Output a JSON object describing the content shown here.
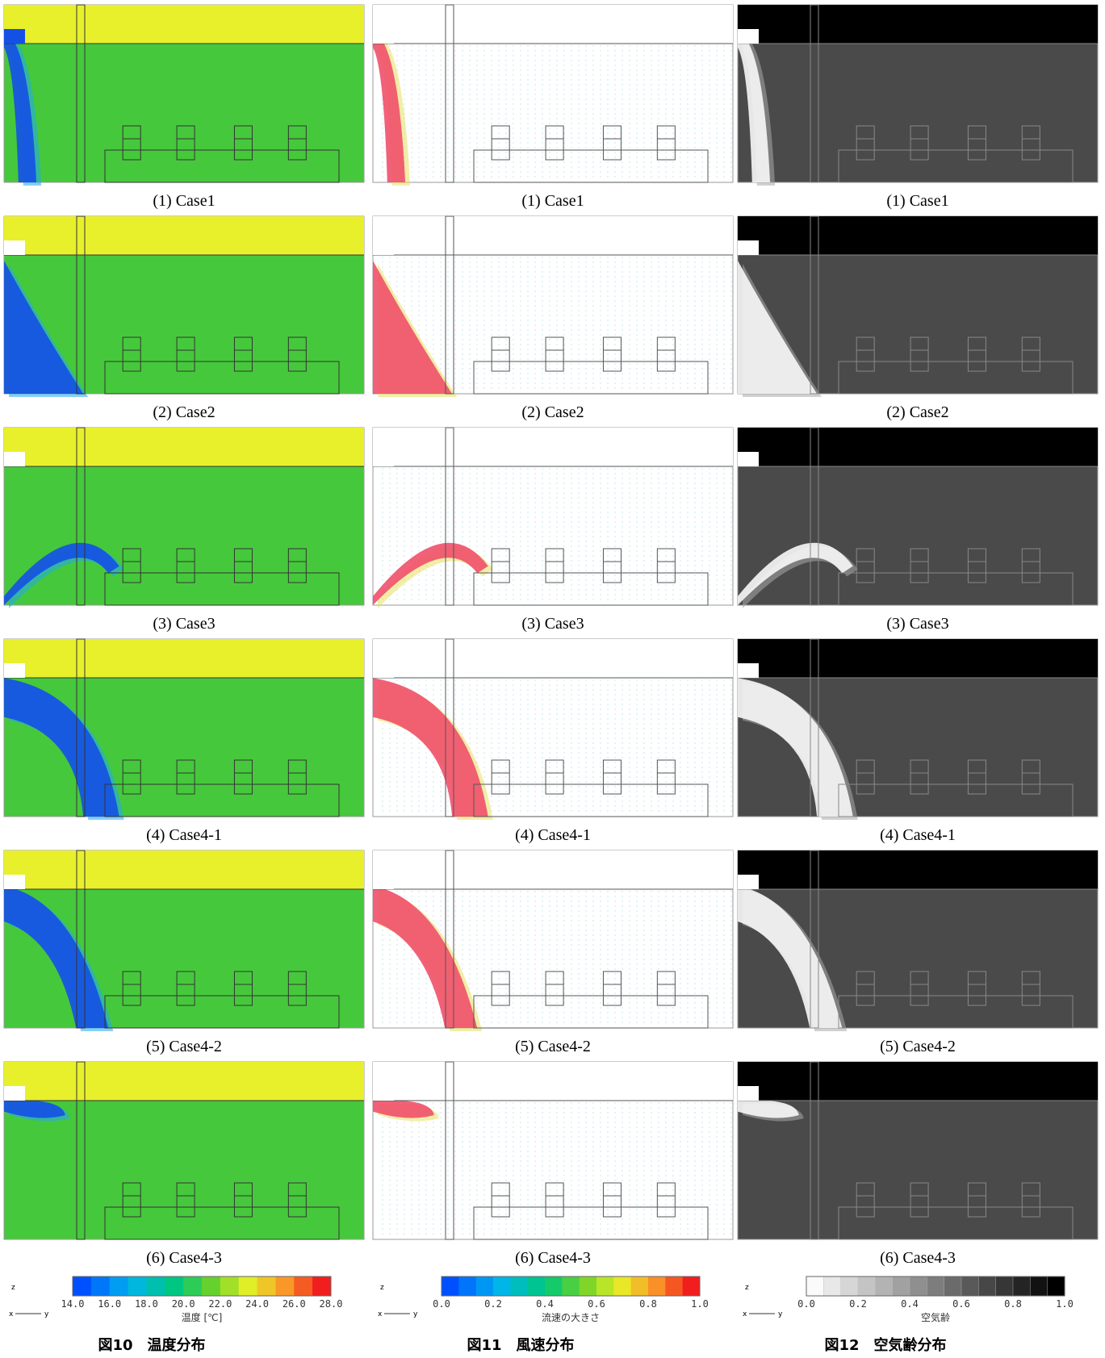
{
  "figures": [
    {
      "title": "図10　温度分布",
      "panels": [
        "(1) Case1",
        "(2) Case2",
        "(3) Case3",
        "(4) Case4-1",
        "(5) Case4-2",
        "(6) Case4-3"
      ],
      "colorbar": {
        "label": "温度 [℃]",
        "ticks": [
          "14.0",
          "16.0",
          "18.0",
          "20.0",
          "22.0",
          "24.0",
          "26.0",
          "28.0"
        ]
      },
      "axes": {
        "z": "z",
        "x": "x",
        "y": "y"
      }
    },
    {
      "title": "図11　風速分布",
      "panels": [
        "(1) Case1",
        "(2) Case2",
        "(3) Case3",
        "(4) Case4-1",
        "(5) Case4-2",
        "(6) Case4-3"
      ],
      "colorbar": {
        "label": "流速の大きさ",
        "ticks": [
          "0.0",
          "0.2",
          "0.4",
          "0.6",
          "0.8",
          "1.0"
        ]
      },
      "axes": {
        "z": "z",
        "x": "x",
        "y": "y"
      }
    },
    {
      "title": "図12　空気齢分布",
      "panels": [
        "(1) Case1",
        "(2) Case2",
        "(3) Case3",
        "(4) Case4-1",
        "(5) Case4-2",
        "(6) Case4-3"
      ],
      "colorbar": {
        "label": "空気齢",
        "ticks": [
          "0.0",
          "0.2",
          "0.4",
          "0.6",
          "0.8",
          "1.0"
        ]
      },
      "axes": {
        "z": "z",
        "x": "x",
        "y": "y"
      }
    }
  ]
}
